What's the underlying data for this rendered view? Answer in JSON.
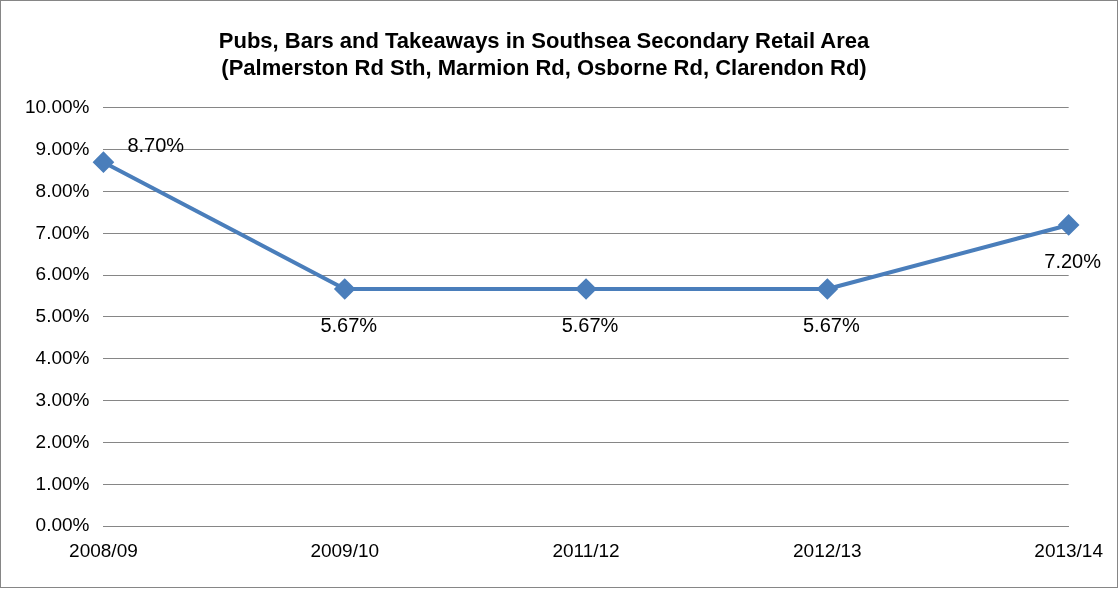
{
  "chart_data": {
    "type": "line",
    "title": "Pubs, Bars and Takeaways in Southsea Secondary Retail Area\n(Palmerston Rd Sth, Marmion Rd, Osborne Rd, Clarendon Rd)",
    "categories": [
      "2008/09",
      "2009/10",
      "2011/12",
      "2012/13",
      "2013/14"
    ],
    "series": [
      {
        "color": "#4a7ebb",
        "values": [
          8.7,
          5.67,
          5.67,
          5.67,
          7.2
        ],
        "value_labels": [
          "8.70%",
          "5.67%",
          "5.67%",
          "5.67%",
          "7.20%"
        ]
      }
    ],
    "ylim": [
      0,
      10
    ],
    "yticks": [
      {
        "value": 0,
        "label": "0.00%"
      },
      {
        "value": 1,
        "label": "1.00%"
      },
      {
        "value": 2,
        "label": "2.00%"
      },
      {
        "value": 3,
        "label": "3.00%"
      },
      {
        "value": 4,
        "label": "4.00%"
      },
      {
        "value": 5,
        "label": "5.00%"
      },
      {
        "value": 6,
        "label": "6.00%"
      },
      {
        "value": 7,
        "label": "7.00%"
      },
      {
        "value": 8,
        "label": "8.00%"
      },
      {
        "value": 9,
        "label": "9.00%"
      },
      {
        "value": 10,
        "label": "10.00%"
      }
    ],
    "grid": "y",
    "legend": false,
    "marker": "diamond",
    "line_style": "solid"
  }
}
